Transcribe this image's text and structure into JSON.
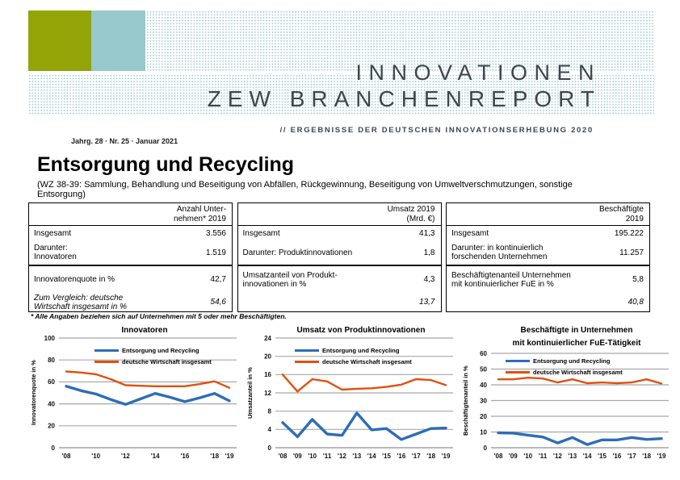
{
  "header": {
    "title_line1": "INNOVATIONEN",
    "title_line2": "ZEW BRANCHENREPORT",
    "subtitle": "// ERGEBNISSE DER DEUTSCHEN INNOVATIONSERHEBUNG 2020",
    "issue_info": "Jahrg. 28 · Nr. 25 · Januar 2021",
    "colors": {
      "logo_green": "#93A506",
      "logo_blue": "#97C8CC",
      "dots": "#9FCBD0",
      "title_text": "#3E464C"
    }
  },
  "report": {
    "title": "Entsorgung und Recycling",
    "subtitle": "(WZ 38-39: Sammlung, Behandlung und Beseitigung von Abfällen, Rückgewinnung, Beseitigung von Umweltverschmutzungen, sonstige Entsorgung)",
    "footnote": "* Alle Angaben beziehen sich auf Unternehmen mit 5 oder mehr Beschäftigten."
  },
  "table": {
    "groups": [
      {
        "header": [
          "Anzahl Unter-",
          "nehmen* 2019"
        ],
        "rows": [
          {
            "label": [
              "Insgesamt"
            ],
            "value": "3.556",
            "italic": false
          },
          {
            "label": [
              "Darunter:",
              "Innovatoren"
            ],
            "value": "1.519",
            "italic": false
          },
          {
            "label": [
              "Innovatorenquote in %"
            ],
            "value": "42,7",
            "italic": false
          },
          {
            "label": [
              "Zum Vergleich: deutsche",
              "Wirtschaft insgesamt in %"
            ],
            "value": "54,6",
            "italic": true
          }
        ]
      },
      {
        "header": [
          "Umsatz 2019",
          "(Mrd. €)"
        ],
        "rows": [
          {
            "label": [
              "Insgesamt"
            ],
            "value": "41,3",
            "italic": false
          },
          {
            "label": [
              "Darunter: Produktinnovationen"
            ],
            "value": "1,8",
            "italic": false
          },
          {
            "label": [
              "Umsatzanteil von Produkt-",
              "innovationen in %"
            ],
            "value": "4,3",
            "italic": false
          },
          {
            "label": [],
            "value": "13,7",
            "italic": true
          }
        ]
      },
      {
        "header": [
          "Beschäftigte",
          "2019"
        ],
        "rows": [
          {
            "label": [
              "Insgesamt"
            ],
            "value": "195.222",
            "italic": false
          },
          {
            "label": [
              "Darunter: in kontinuierlich",
              "forschenden Unternehmen"
            ],
            "value": "11.257",
            "italic": false
          },
          {
            "label": [
              "Beschäftigtenanteil Unternehmen",
              "mit kontinuierlicher FuE in %"
            ],
            "value": "5,8",
            "italic": false
          },
          {
            "label": [],
            "value": "40,8",
            "italic": true
          }
        ]
      }
    ]
  },
  "chart_data": [
    {
      "type": "line",
      "title_lines": [
        "Innovatoren"
      ],
      "ylabel": "Innovatorenquote in %",
      "ylim": [
        0,
        100
      ],
      "yticks": [
        0,
        20,
        40,
        60,
        80,
        100
      ],
      "x": [
        "'08",
        "'09",
        "'10",
        "'11",
        "'12",
        "'13",
        "'14",
        "'15",
        "'16",
        "'17",
        "'18",
        "'19"
      ],
      "xtick_show": [
        "'08",
        "'10",
        "'12",
        "'14",
        "'16",
        "'18",
        "'19"
      ],
      "grid": true,
      "legend_position": "top-inside",
      "series": [
        {
          "name": "Entsorgung und Recycling",
          "color": "#2E6DB6",
          "values": [
            56,
            52,
            49,
            44,
            39.5,
            44.5,
            49.5,
            46,
            42,
            45.5,
            49.5,
            42.7
          ]
        },
        {
          "name": "deutsche Wirtschaft insgesamt",
          "color": "#E0500E",
          "values": [
            69.5,
            68.5,
            67,
            62.5,
            57,
            56.5,
            56,
            56,
            56,
            58,
            60.5,
            54.6
          ]
        }
      ]
    },
    {
      "type": "line",
      "title_lines": [
        "Umsatz von Produktinnovationen"
      ],
      "ylabel": "Umsatzanteil in %",
      "ylim": [
        0,
        24
      ],
      "yticks": [
        0,
        4,
        8,
        12,
        16,
        20,
        24
      ],
      "x": [
        "'08",
        "'09",
        "'10",
        "'11",
        "'12",
        "'13",
        "'14",
        "'15",
        "'16",
        "'17",
        "'18",
        "'19"
      ],
      "xtick_show": [
        "'08",
        "'09",
        "'10",
        "'11",
        "'12",
        "'13",
        "'14",
        "'15",
        "'16",
        "'17",
        "'18",
        "'19"
      ],
      "grid": true,
      "legend_position": "top-inside",
      "series": [
        {
          "name": "Entsorgung und Recycling",
          "color": "#2E6DB6",
          "values": [
            5.5,
            2.4,
            6.2,
            3.0,
            2.7,
            7.6,
            3.9,
            4.2,
            1.8,
            3.0,
            4.2,
            4.3
          ]
        },
        {
          "name": "deutsche Wirtschaft insgesamt",
          "color": "#E0500E",
          "values": [
            16.0,
            12.3,
            15.0,
            14.5,
            12.7,
            12.9,
            13.0,
            13.3,
            13.8,
            15.0,
            14.8,
            13.7
          ]
        }
      ]
    },
    {
      "type": "line",
      "title_lines": [
        "Beschäftigte in Unternehmen",
        "mit kontinuierlicher FuE-Tätigkeit"
      ],
      "ylabel": "Beschäftigtenanteil in %",
      "ylim": [
        0,
        60
      ],
      "yticks": [
        0,
        10,
        20,
        30,
        40,
        50,
        60
      ],
      "x": [
        "'08",
        "'09",
        "'10",
        "'11",
        "'12",
        "'13",
        "'14",
        "'15",
        "'16",
        "'17",
        "'18",
        "'19"
      ],
      "xtick_show": [
        "'08",
        "'09",
        "'10",
        "'11",
        "'12",
        "'13",
        "'14",
        "'15",
        "'16",
        "'17",
        "'18",
        "'19"
      ],
      "grid": true,
      "legend_position": "top-inside",
      "series": [
        {
          "name": "Entsorgung und Recycling",
          "color": "#2E6DB6",
          "values": [
            9.5,
            9.3,
            8.0,
            6.8,
            3.0,
            6.5,
            2.0,
            5.0,
            5.0,
            6.5,
            5.3,
            5.8
          ]
        },
        {
          "name": "deutsche Wirtschaft insgesamt",
          "color": "#E0500E",
          "values": [
            43.5,
            43.5,
            44.5,
            44.0,
            41.5,
            43.5,
            41.0,
            41.5,
            41.0,
            41.5,
            43.5,
            40.8
          ]
        }
      ]
    }
  ]
}
